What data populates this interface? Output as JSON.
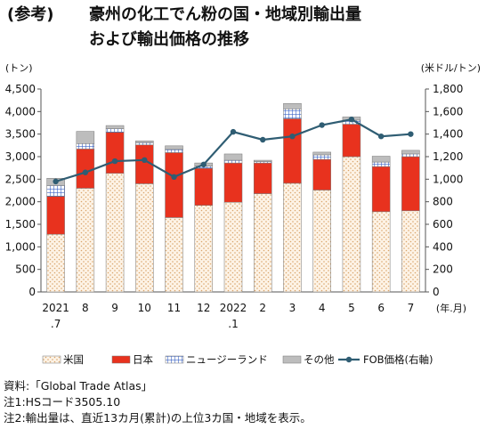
{
  "title": {
    "tag": "(参考)",
    "line1": "豪州の化工でん粉の国・地域別輸出量",
    "line2": "および輸出価格の推移"
  },
  "chart_data": {
    "type": "bar",
    "stacked": true,
    "categories": [
      "2021 .7",
      "8",
      "9",
      "10",
      "11",
      "12",
      "2022 .1",
      "2",
      "3",
      "4",
      "5",
      "6",
      "7"
    ],
    "xlabel": "(年.月)",
    "ylabel_left": "(トン)",
    "ylabel_right": "(米ドル/トン)",
    "ylim_left": [
      0,
      4500
    ],
    "ylim_right": [
      0,
      1800
    ],
    "yticks_left": [
      "0",
      "500",
      "1,000",
      "1,500",
      "2,000",
      "2,500",
      "3,000",
      "3,500",
      "4,000",
      "4,500"
    ],
    "yticks_right": [
      "0",
      "200",
      "400",
      "600",
      "800",
      "1,000",
      "1,200",
      "1,400",
      "1,600",
      "1,800"
    ],
    "grid": false,
    "legend_position": "bottom",
    "series": [
      {
        "name": "米国",
        "axis": "left",
        "color": "#f3d9b8",
        "values": [
          1280,
          2300,
          2630,
          2400,
          1650,
          1920,
          1990,
          2180,
          2410,
          2260,
          3000,
          1780,
          1800
        ]
      },
      {
        "name": "日本",
        "axis": "left",
        "color": "#e8321e",
        "values": [
          840,
          870,
          910,
          860,
          1440,
          820,
          870,
          680,
          1430,
          680,
          720,
          1000,
          1200
        ]
      },
      {
        "name": "ニュージーランド",
        "axis": "left",
        "color": "#3b63c4",
        "values": [
          240,
          120,
          80,
          50,
          70,
          50,
          60,
          30,
          220,
          100,
          90,
          100,
          60
        ]
      },
      {
        "name": "その他",
        "axis": "left",
        "color": "#bdbdbd",
        "values": [
          160,
          270,
          70,
          40,
          80,
          70,
          140,
          30,
          120,
          60,
          70,
          130,
          80
        ]
      },
      {
        "name": "FOB価格(右軸)",
        "axis": "right",
        "type": "line",
        "color": "#2f5d73",
        "values": [
          980,
          1060,
          1160,
          1170,
          1020,
          1130,
          1420,
          1350,
          1380,
          1480,
          1530,
          1380,
          1400
        ]
      }
    ]
  },
  "notes": [
    "資料:「Global Trade Atlas」",
    "注1:HSコード3505.10",
    "注2:輸出量は、直近13カ月(累計)の上位3カ国・地域を表示。"
  ]
}
